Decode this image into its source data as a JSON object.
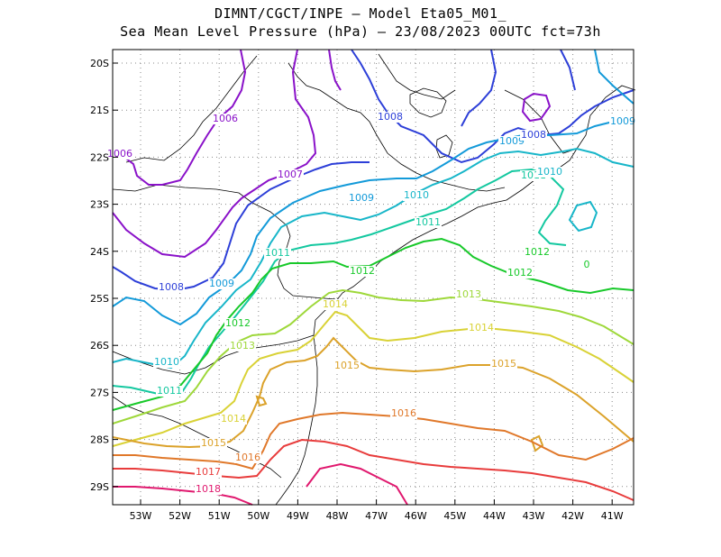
{
  "title": {
    "line1": "DIMNT/CGCT/INPE –  Model Eta05_M01_",
    "line2": "Sea Mean Level Pressure (hPa) – 23/08/2023 00UTC fct=73h"
  },
  "map": {
    "lon_ticks": [
      "53W",
      "52W",
      "51W",
      "50W",
      "49W",
      "48W",
      "47W",
      "46W",
      "45W",
      "44W",
      "43W",
      "42W",
      "41W"
    ],
    "lat_ticks": [
      "20S",
      "21S",
      "22S",
      "23S",
      "24S",
      "25S",
      "26S",
      "27S",
      "28S",
      "29S"
    ],
    "grid": "dotted",
    "colors": {
      "1006": "#8a12c9",
      "1007": "#8a12c9",
      "1008": "#2d3fd8",
      "1009": "#139ad9",
      "1010": "#18b6c9",
      "1011": "#14c8a0",
      "1012": "#18c92a",
      "1013": "#9ed83a",
      "1014": "#d9d236",
      "1015": "#dba22a",
      "1016": "#e0782a",
      "1017": "#e83c3c",
      "1018": "#e0186e",
      "coast": "#000000"
    }
  },
  "labels": [
    {
      "text": "1006"
    },
    {
      "text": "1007"
    },
    {
      "text": "1008"
    },
    {
      "text": "1008"
    },
    {
      "text": "1009"
    },
    {
      "text": "1009"
    },
    {
      "text": "1009"
    },
    {
      "text": "1010"
    },
    {
      "text": "1010"
    },
    {
      "text": "1010"
    },
    {
      "text": "1011"
    },
    {
      "text": "1011"
    },
    {
      "text": "1011"
    },
    {
      "text": "1011"
    },
    {
      "text": "1012"
    },
    {
      "text": "1012"
    },
    {
      "text": "1012"
    },
    {
      "text": "1012"
    },
    {
      "text": "1013"
    },
    {
      "text": "1013"
    },
    {
      "text": "1014"
    },
    {
      "text": "1014"
    },
    {
      "text": "1014"
    },
    {
      "text": "1015"
    },
    {
      "text": "1015"
    },
    {
      "text": "1015"
    },
    {
      "text": "1016"
    },
    {
      "text": "1016"
    },
    {
      "text": "1017"
    },
    {
      "text": "1018"
    },
    {
      "text": "1009"
    },
    {
      "text": "1008"
    },
    {
      "text": "1006"
    },
    {
      "text": "1010"
    },
    {
      "text": "0"
    }
  ]
}
